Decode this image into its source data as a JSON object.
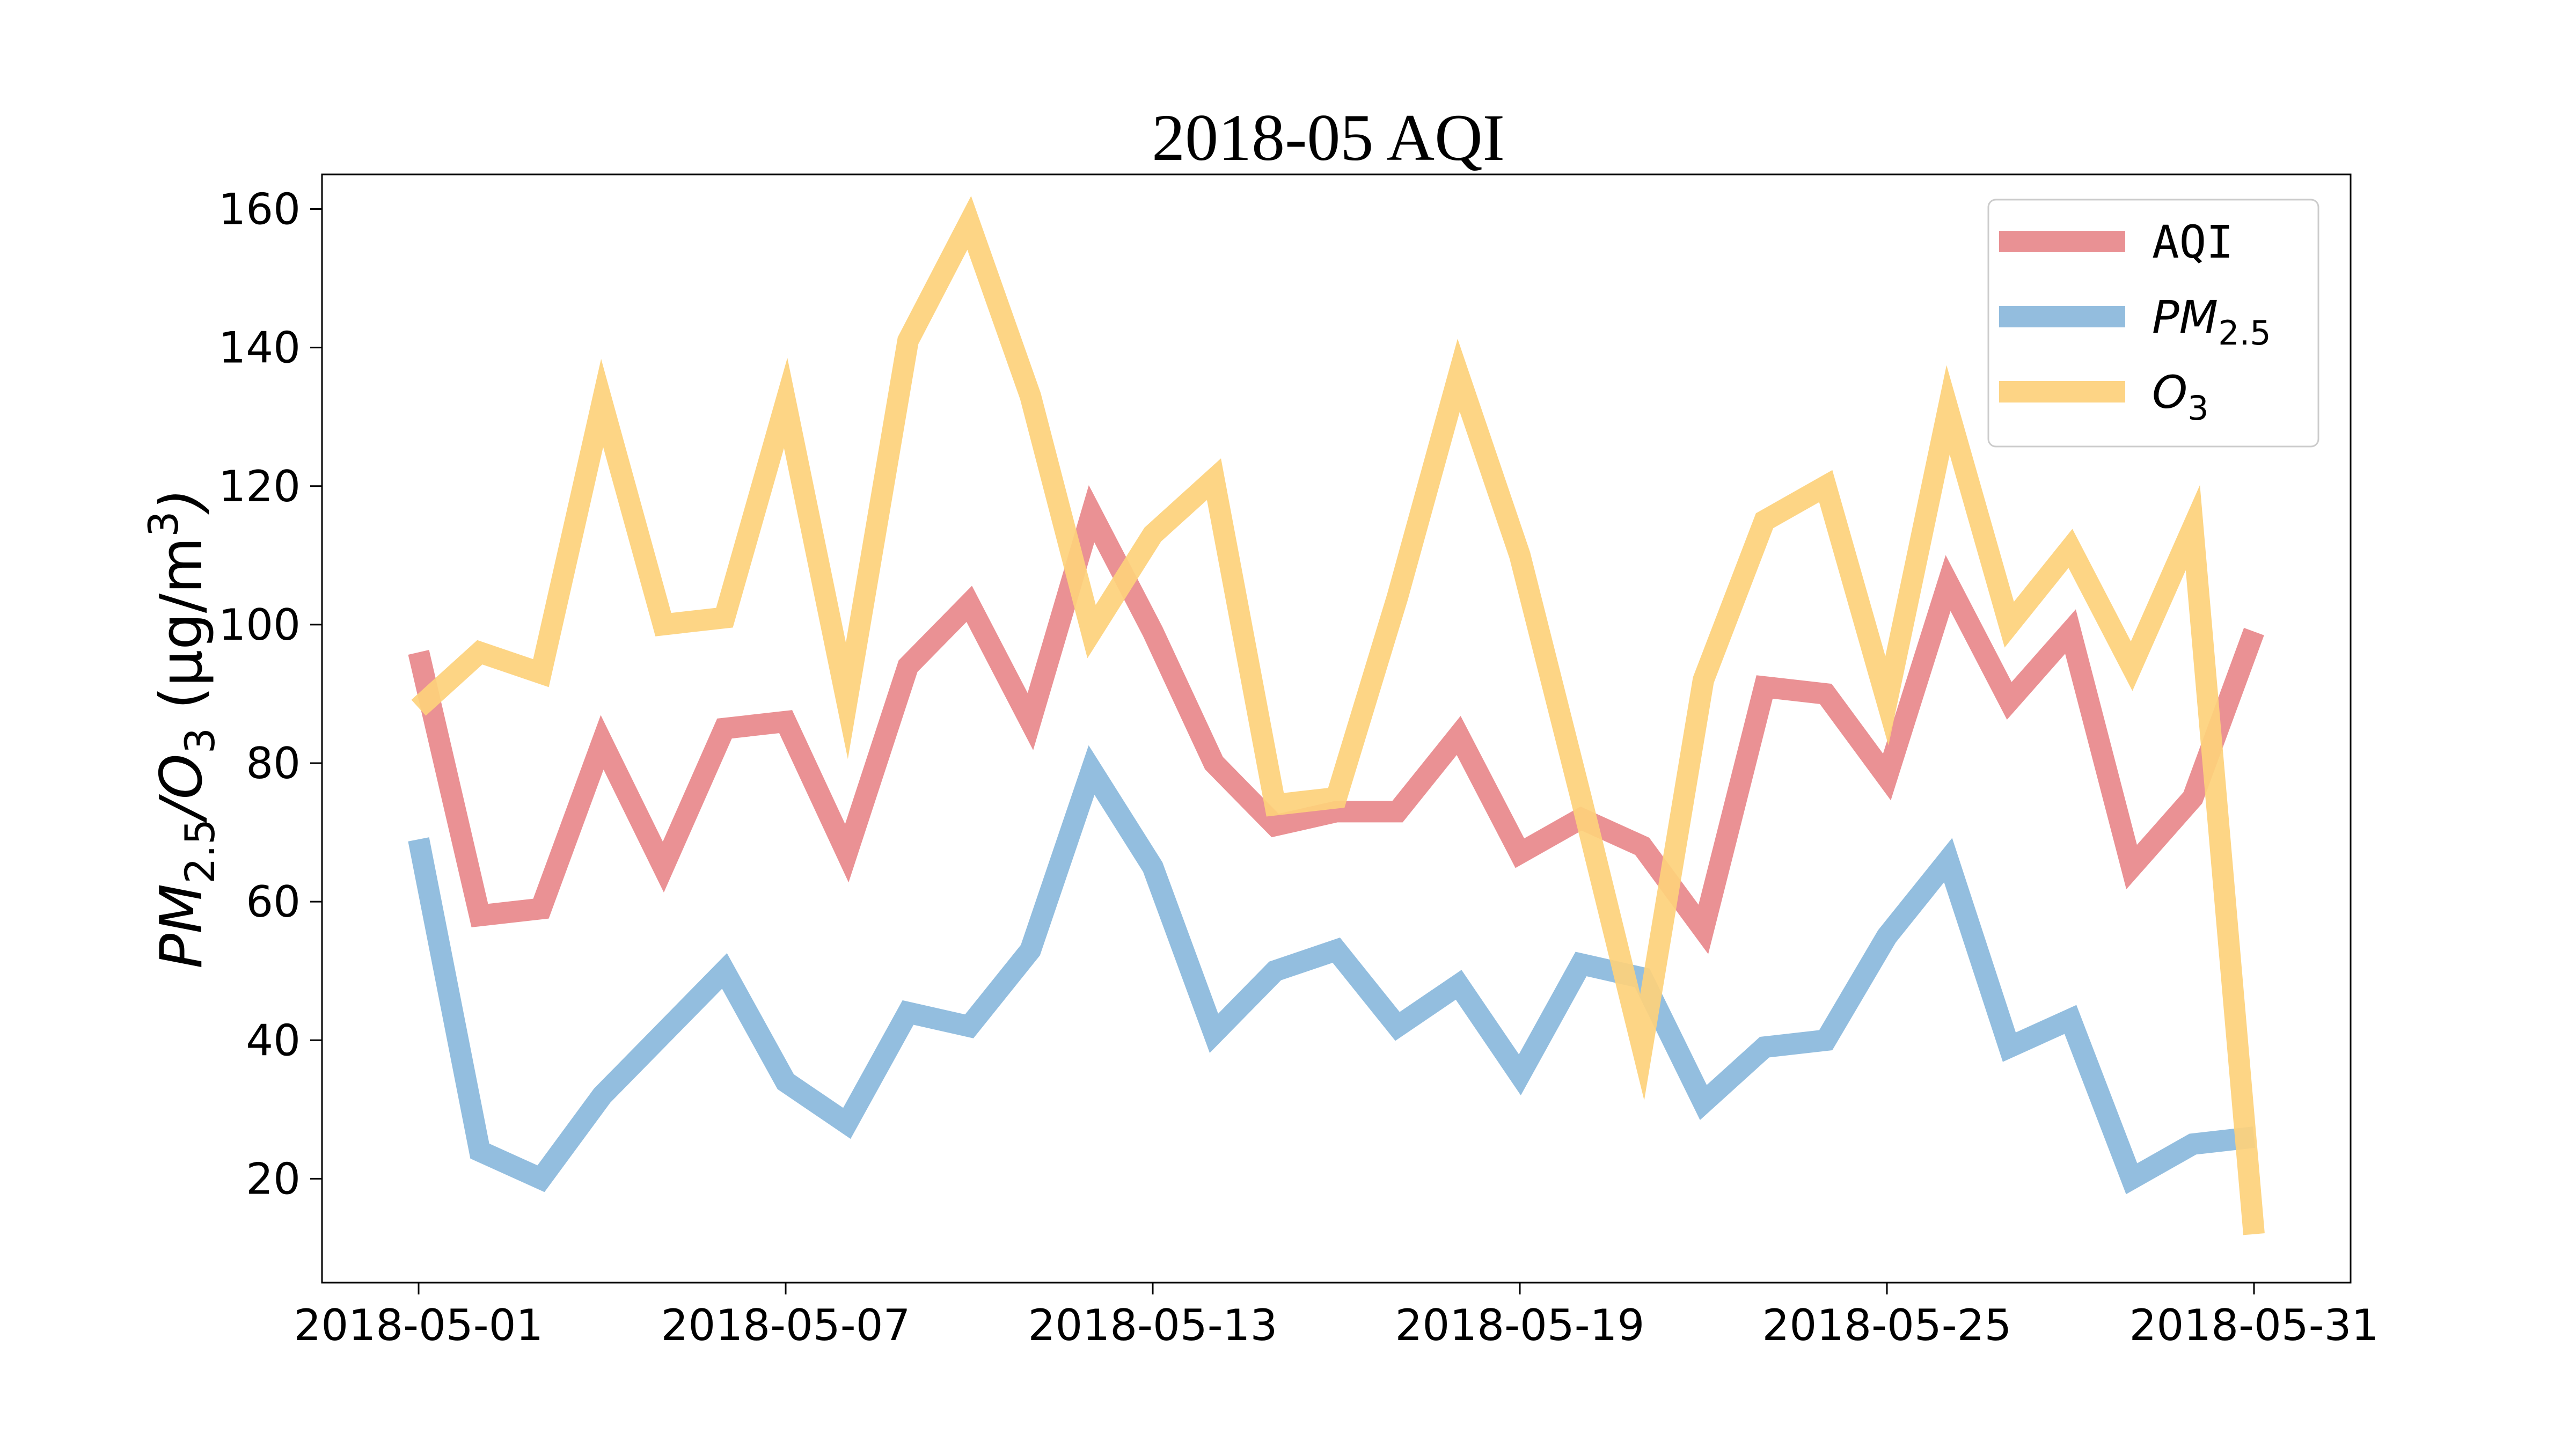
{
  "chart_data": {
    "type": "line",
    "title": "2018-05 AQI",
    "ylabel": {
      "main": "PM",
      "main_sub": "2.5",
      "sep": "/O",
      "sep_sub": "3",
      "unit": "  (μg/m",
      "unit_sup": "3",
      "unit_end": ")"
    },
    "xlabel": "",
    "x": [
      "2018-05-01",
      "2018-05-02",
      "2018-05-03",
      "2018-05-04",
      "2018-05-05",
      "2018-05-06",
      "2018-05-07",
      "2018-05-08",
      "2018-05-09",
      "2018-05-10",
      "2018-05-11",
      "2018-05-12",
      "2018-05-13",
      "2018-05-14",
      "2018-05-15",
      "2018-05-16",
      "2018-05-17",
      "2018-05-18",
      "2018-05-19",
      "2018-05-20",
      "2018-05-21",
      "2018-05-22",
      "2018-05-23",
      "2018-05-24",
      "2018-05-25",
      "2018-05-26",
      "2018-05-27",
      "2018-05-28",
      "2018-05-29",
      "2018-05-30",
      "2018-05-31"
    ],
    "xticks": [
      "2018-05-01",
      "2018-05-07",
      "2018-05-13",
      "2018-05-19",
      "2018-05-25",
      "2018-05-31"
    ],
    "yticks": [
      20,
      40,
      60,
      80,
      100,
      120,
      140,
      160
    ],
    "ylim": [
      5,
      165
    ],
    "grid": false,
    "legend_position": "top-right",
    "series": [
      {
        "key": "aqi",
        "name": "AQI",
        "color": "#e8888b",
        "values": [
          96,
          58,
          59,
          83,
          65,
          85,
          86,
          67,
          94,
          103,
          86,
          116,
          99,
          80,
          71,
          73,
          73,
          84,
          67,
          72,
          68,
          56,
          91,
          90,
          78,
          106,
          89,
          99,
          65,
          75,
          99
        ]
      },
      {
        "key": "pm25",
        "name": "PM",
        "name_sub": "2.5",
        "color": "#8ab8dc",
        "values": [
          69,
          24,
          20,
          32,
          41,
          50,
          34,
          28,
          44,
          42,
          53,
          79,
          65,
          41,
          50,
          53,
          42,
          48,
          35,
          51,
          49,
          31,
          39,
          40,
          55,
          66,
          39,
          43,
          20,
          25,
          26
        ]
      },
      {
        "key": "o3",
        "name": "O",
        "name_sub": "3",
        "color": "#fdd17b",
        "values": [
          88,
          96,
          93,
          132,
          100,
          101,
          132,
          89,
          141,
          158,
          133,
          99,
          113,
          121,
          74,
          75,
          104,
          136,
          110,
          75,
          39,
          92,
          115,
          120,
          89,
          131,
          100,
          111,
          94,
          114,
          12
        ]
      }
    ]
  }
}
